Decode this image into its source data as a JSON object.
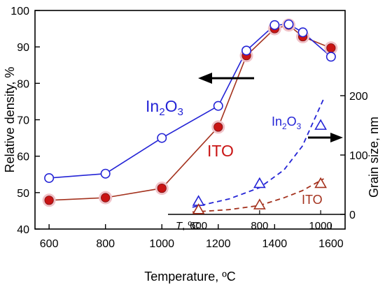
{
  "colors": {
    "in2o3": "#2424d6",
    "ito_line": "#a4321e",
    "ito_fill": "#c91414",
    "ito_halo": "#f0c2c8",
    "arrow": "#000000"
  },
  "chart_data": [
    {
      "type": "line",
      "xlabel": "Temperature, ºC",
      "ylabel": "Relative density, %",
      "xlim": [
        550,
        1650
      ],
      "ylim": [
        40,
        100
      ],
      "x_ticks": [
        600,
        800,
        1000,
        1200,
        1400,
        1600
      ],
      "y_ticks": [
        40,
        50,
        60,
        70,
        80,
        90,
        100
      ],
      "series": [
        {
          "name": "In2O3",
          "label_base": "In",
          "label_sub": "2",
          "label_base2": "O",
          "label_sub2": "3",
          "marker": "open-circle",
          "points": [
            [
              600,
              54
            ],
            [
              800,
              55.2
            ],
            [
              1000,
              65
            ],
            [
              1200,
              73.8
            ],
            [
              1300,
              89
            ],
            [
              1400,
              96
            ],
            [
              1450,
              96.2
            ],
            [
              1500,
              94
            ],
            [
              1600,
              87.3
            ]
          ]
        },
        {
          "name": "ITO",
          "marker": "filled-circle",
          "points": [
            [
              600,
              47.9
            ],
            [
              800,
              48.6
            ],
            [
              1000,
              51.2
            ],
            [
              1200,
              68
            ],
            [
              1300,
              87.6
            ],
            [
              1400,
              95
            ],
            [
              1450,
              96
            ],
            [
              1500,
              92.8
            ],
            [
              1600,
              89.7
            ]
          ]
        }
      ]
    },
    {
      "type": "scatter",
      "inset": true,
      "xlabel_italic": "T",
      "xlabel_rest": ", ºC",
      "ylabel": "Grain size, nm",
      "xlim": [
        500,
        1080
      ],
      "ylim": [
        0,
        200
      ],
      "x_ticks": [
        600,
        800,
        1000
      ],
      "y_ticks": [
        0,
        100,
        200
      ],
      "series": [
        {
          "name": "In2O3",
          "label_base": "In",
          "label_sub": "2",
          "label_base2": "O",
          "label_sub2": "3",
          "marker": "open-triangle",
          "points": [
            [
              600,
              22
            ],
            [
              800,
              52
            ],
            [
              1000,
              150
            ]
          ],
          "trend": [
            [
              580,
              12
            ],
            [
              700,
              26
            ],
            [
              800,
              45
            ],
            [
              880,
              75
            ],
            [
              940,
              115
            ],
            [
              1010,
              195
            ]
          ]
        },
        {
          "name": "ITO",
          "marker": "open-triangle",
          "points": [
            [
              600,
              8
            ],
            [
              800,
              16
            ],
            [
              1000,
              52
            ]
          ],
          "trend": [
            [
              580,
              4
            ],
            [
              700,
              8
            ],
            [
              800,
              15
            ],
            [
              880,
              28
            ],
            [
              940,
              40
            ],
            [
              1010,
              60
            ]
          ]
        }
      ]
    }
  ]
}
